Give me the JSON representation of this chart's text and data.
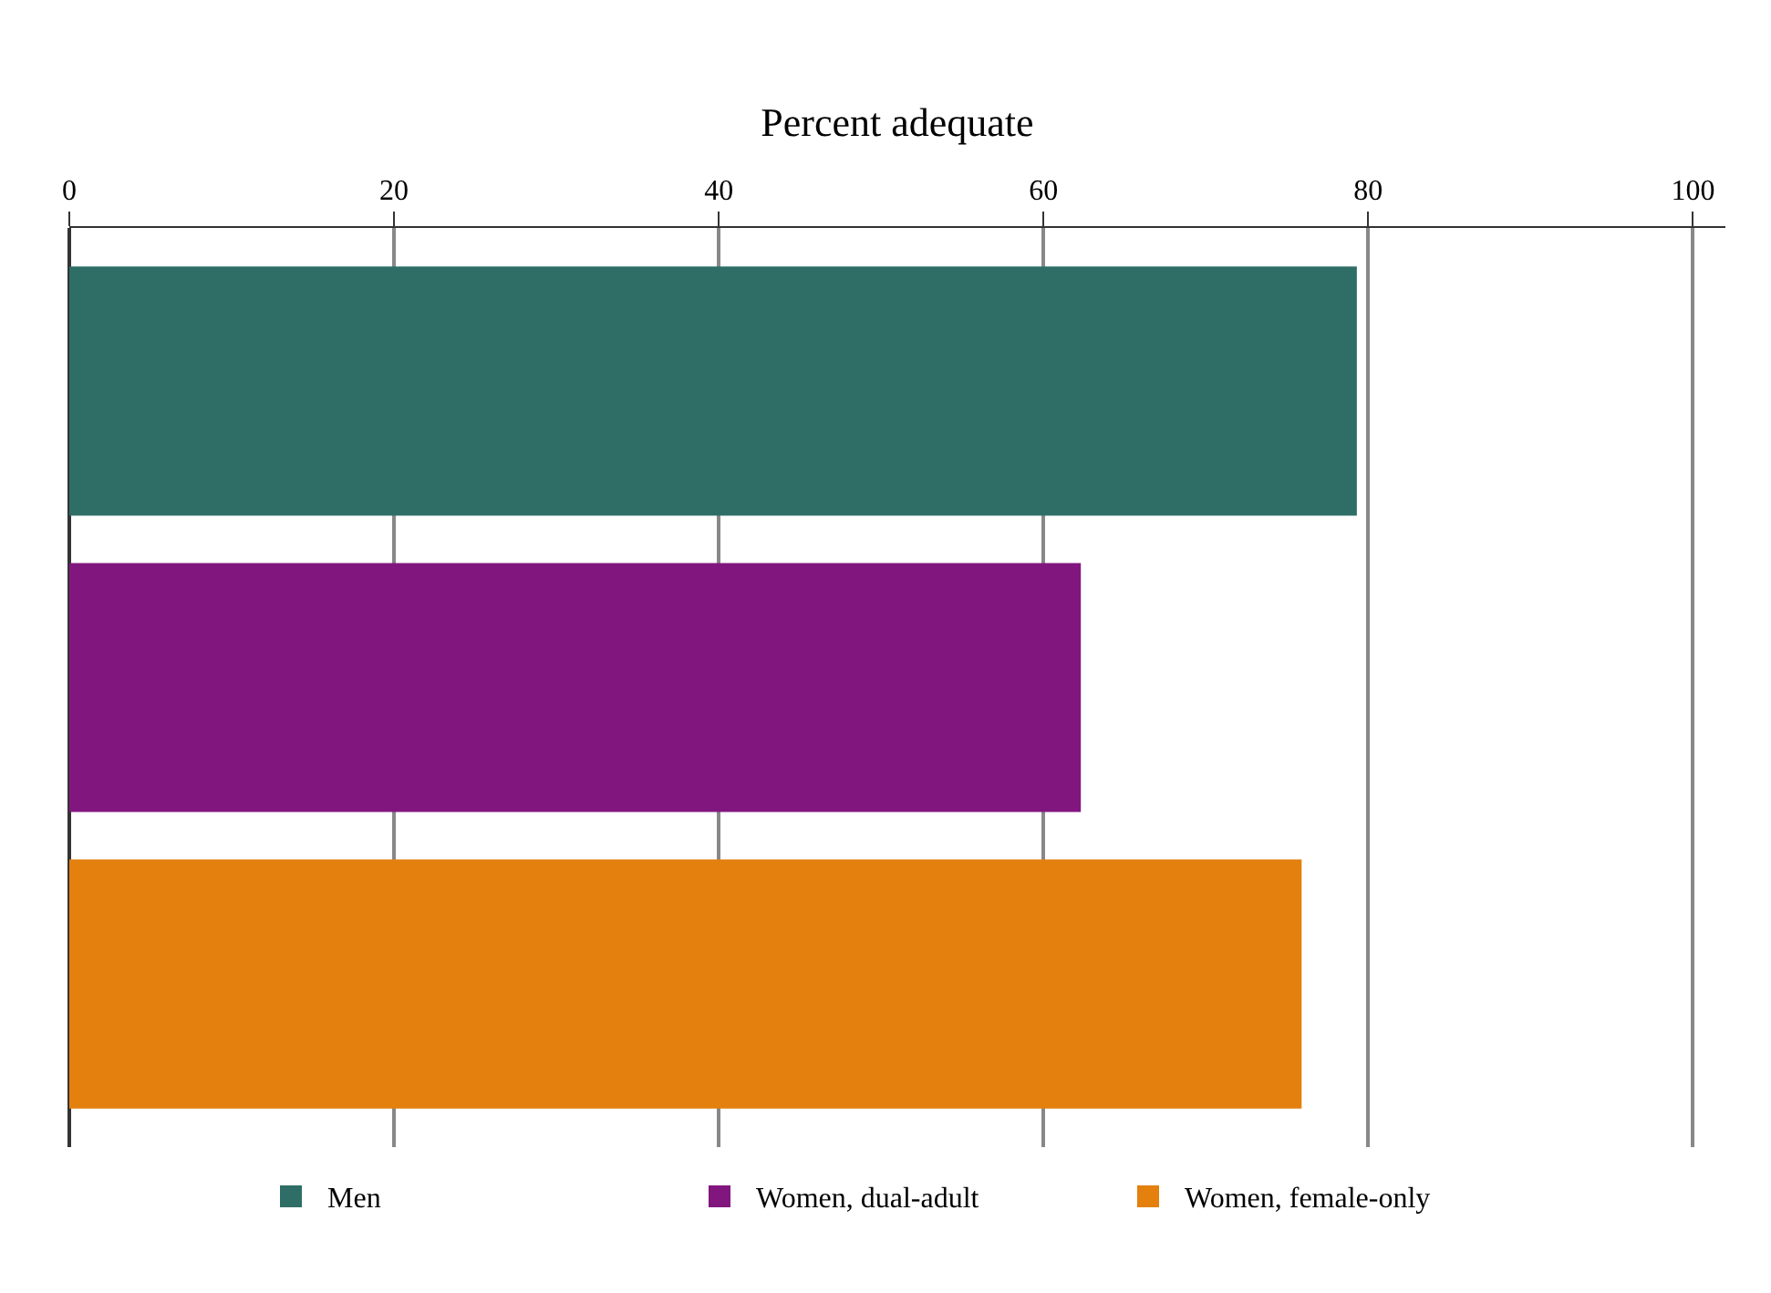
{
  "chart_data": {
    "type": "bar",
    "orientation": "horizontal",
    "xlabel": "Percent adequate",
    "categories": [
      null,
      null,
      null
    ],
    "series": [
      {
        "name": "Men",
        "color": "#2e6e66",
        "values": [
          79.3,
          null,
          null
        ]
      },
      {
        "name": "Women, dual-adult",
        "color": "#82167f",
        "values": [
          null,
          62.3,
          null
        ]
      },
      {
        "name": "Women, female-only",
        "color": "#e3800e",
        "values": [
          null,
          null,
          75.9
        ]
      }
    ],
    "xlim": [
      0,
      102
    ],
    "xticks": [
      0,
      20,
      40,
      60,
      80,
      100
    ],
    "grid": "x",
    "legend": "bottom"
  }
}
